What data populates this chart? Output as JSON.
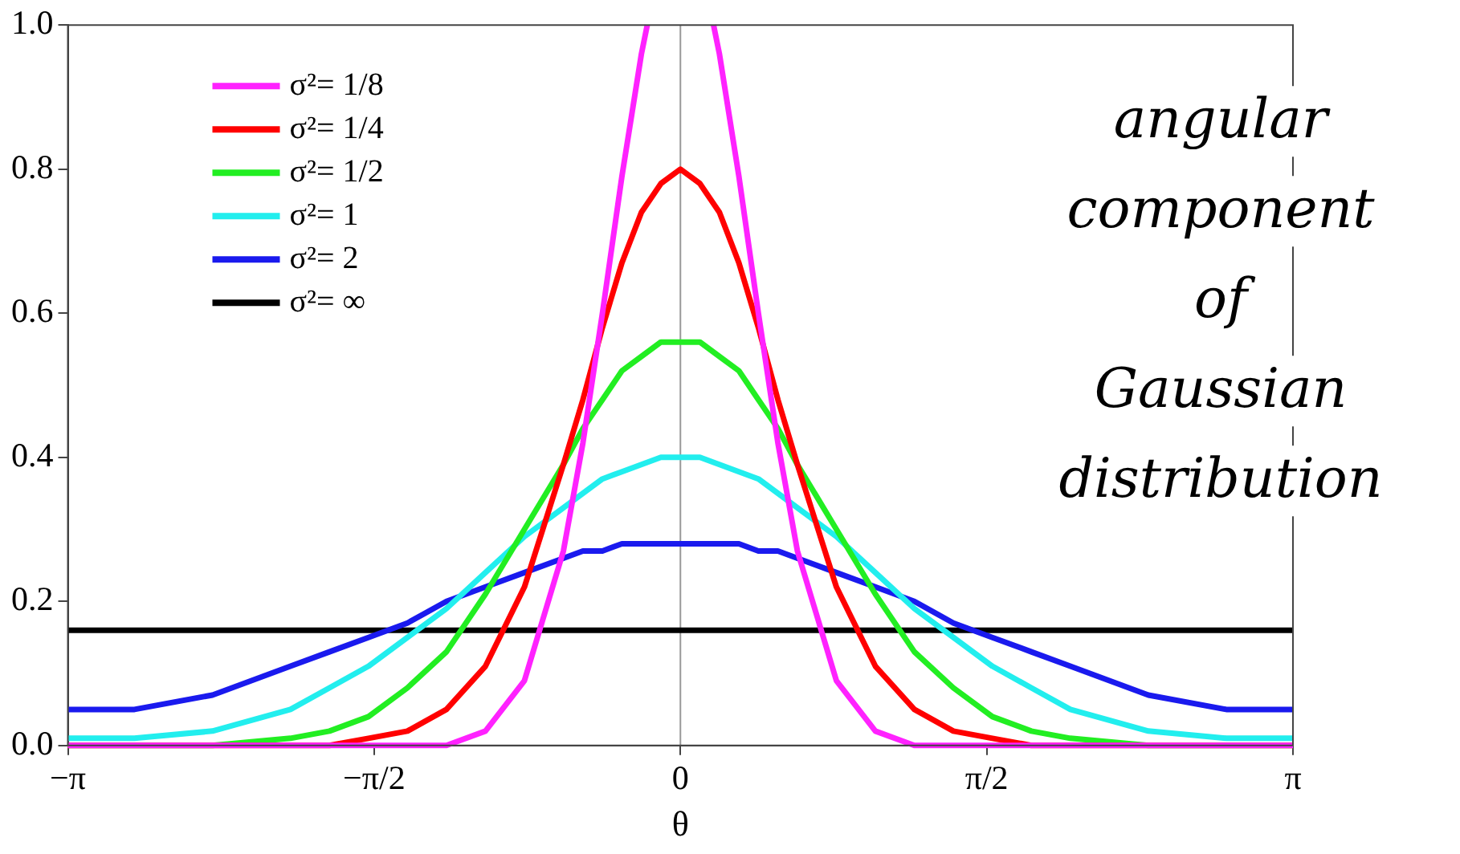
{
  "chart_data": {
    "type": "line",
    "xlabel": "θ",
    "xlim": [
      -3.1416,
      3.1416
    ],
    "ylim": [
      0,
      1
    ],
    "xticks": [
      {
        "value": -3.1416,
        "label": "−π"
      },
      {
        "value": -1.5708,
        "label": "−π/2"
      },
      {
        "value": 0,
        "label": "0"
      },
      {
        "value": 1.5708,
        "label": "π/2"
      },
      {
        "value": 3.1416,
        "label": "π"
      }
    ],
    "yticks": [
      {
        "value": 0,
        "label": "0.0"
      },
      {
        "value": 0.2,
        "label": "0.2"
      },
      {
        "value": 0.4,
        "label": "0.4"
      },
      {
        "value": 0.6,
        "label": "0.6"
      },
      {
        "value": 0.8,
        "label": "0.8"
      },
      {
        "value": 1,
        "label": "1.0"
      }
    ],
    "grid": false,
    "legend": "top left",
    "marker": "none",
    "line_style": "solid",
    "ref_lines": [
      {
        "axis": "x",
        "value": 0,
        "color": "#999999"
      }
    ],
    "annotations": [
      "angular component of Gaussian distribution"
    ],
    "series": [
      {
        "name": "σ²= 1/8",
        "color": "#ff22ff",
        "x": [
          -3.1416,
          -1.4,
          -1.2,
          -1.0,
          -0.8,
          -0.6,
          -0.5,
          -0.4,
          -0.3,
          -0.2,
          -0.17,
          0,
          0.17,
          0.2,
          0.3,
          0.4,
          0.5,
          0.6,
          0.8,
          1.0,
          1.2,
          1.4,
          3.1416
        ],
        "values": [
          0,
          0,
          0,
          0.02,
          0.09,
          0.27,
          0.42,
          0.6,
          0.79,
          0.96,
          1.0,
          null,
          1.0,
          0.96,
          0.79,
          0.6,
          0.42,
          0.27,
          0.09,
          0.02,
          0,
          0,
          0
        ]
      },
      {
        "name": "σ²= 1/4",
        "color": "#ff0000",
        "x": [
          -3.1416,
          -2.0,
          -1.8,
          -1.6,
          -1.4,
          -1.2,
          -1.0,
          -0.8,
          -0.6,
          -0.5,
          -0.4,
          -0.3,
          -0.2,
          -0.1,
          0,
          0.1,
          0.2,
          0.3,
          0.4,
          0.5,
          0.6,
          0.8,
          1.0,
          1.2,
          1.4,
          1.6,
          1.8,
          2.0,
          3.1416
        ],
        "values": [
          0,
          0,
          0,
          0.01,
          0.02,
          0.05,
          0.11,
          0.22,
          0.39,
          0.48,
          0.58,
          0.67,
          0.74,
          0.78,
          0.8,
          0.78,
          0.74,
          0.67,
          0.58,
          0.48,
          0.39,
          0.22,
          0.11,
          0.05,
          0.02,
          0.01,
          0,
          0,
          0
        ]
      },
      {
        "name": "σ²= 1/2",
        "color": "#22ee22",
        "x": [
          -3.1416,
          -2.8,
          -2.4,
          -2.0,
          -1.8,
          -1.6,
          -1.4,
          -1.2,
          -1.0,
          -0.8,
          -0.6,
          -0.5,
          -0.4,
          -0.3,
          -0.2,
          -0.1,
          0,
          0.1,
          0.2,
          0.3,
          0.4,
          0.5,
          0.6,
          0.8,
          1.0,
          1.2,
          1.4,
          1.6,
          1.8,
          2.0,
          2.4,
          2.8,
          3.1416
        ],
        "values": [
          0,
          0,
          0,
          0.01,
          0.02,
          0.04,
          0.08,
          0.13,
          0.21,
          0.3,
          0.39,
          0.44,
          0.48,
          0.52,
          0.54,
          0.56,
          0.56,
          0.56,
          0.54,
          0.52,
          0.48,
          0.44,
          0.39,
          0.3,
          0.21,
          0.13,
          0.08,
          0.04,
          0.02,
          0.01,
          0,
          0,
          0
        ]
      },
      {
        "name": "σ²= 1",
        "color": "#22eeee",
        "x": [
          -3.1416,
          -2.8,
          -2.4,
          -2.0,
          -1.8,
          -1.6,
          -1.4,
          -1.2,
          -1.0,
          -0.8,
          -0.6,
          -0.5,
          -0.4,
          -0.3,
          -0.2,
          -0.1,
          0,
          0.1,
          0.2,
          0.3,
          0.4,
          0.5,
          0.6,
          0.8,
          1.0,
          1.2,
          1.4,
          1.6,
          1.8,
          2.0,
          2.4,
          2.8,
          3.1416
        ],
        "values": [
          0.01,
          0.01,
          0.02,
          0.05,
          0.08,
          0.11,
          0.15,
          0.19,
          0.24,
          0.29,
          0.33,
          0.35,
          0.37,
          0.38,
          0.39,
          0.4,
          0.4,
          0.4,
          0.39,
          0.38,
          0.37,
          0.35,
          0.33,
          0.29,
          0.24,
          0.19,
          0.15,
          0.11,
          0.08,
          0.05,
          0.02,
          0.01,
          0.01
        ]
      },
      {
        "name": "σ²= 2",
        "color": "#1a1aee",
        "x": [
          -3.1416,
          -2.8,
          -2.4,
          -2.0,
          -1.8,
          -1.6,
          -1.4,
          -1.2,
          -1.0,
          -0.8,
          -0.6,
          -0.5,
          -0.4,
          -0.3,
          -0.2,
          -0.1,
          0,
          0.1,
          0.2,
          0.3,
          0.4,
          0.5,
          0.6,
          0.8,
          1.0,
          1.2,
          1.4,
          1.6,
          1.8,
          2.0,
          2.4,
          2.8,
          3.1416
        ],
        "values": [
          0.05,
          0.05,
          0.07,
          0.11,
          0.13,
          0.15,
          0.17,
          0.2,
          0.22,
          0.24,
          0.26,
          0.27,
          0.27,
          0.28,
          0.28,
          0.28,
          0.28,
          0.28,
          0.28,
          0.28,
          0.27,
          0.27,
          0.26,
          0.24,
          0.22,
          0.2,
          0.17,
          0.15,
          0.13,
          0.11,
          0.07,
          0.05,
          0.05
        ]
      },
      {
        "name": "σ²= ∞",
        "color": "#000000",
        "x": [
          -3.1416,
          3.1416
        ],
        "values": [
          0.16,
          0.16
        ]
      }
    ]
  }
}
